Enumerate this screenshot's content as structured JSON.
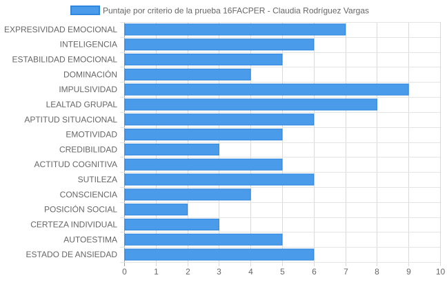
{
  "chart_data": {
    "type": "bar",
    "orientation": "horizontal",
    "categories": [
      "EXPRESIVIDAD EMOCIONAL",
      "INTELIGENCIA",
      "ESTABILIDAD EMOCIONAL",
      "DOMINACIÓN",
      "IMPULSIVIDAD",
      "LEALTAD GRUPAL",
      "APTITUD SITUACIONAL",
      "EMOTIVIDAD",
      "CREDIBILIDAD",
      "ACTITUD COGNITIVA",
      "SUTILEZA",
      "CONSCIENCIA",
      "POSICIÓN SOCIAL",
      "CERTEZA INDIVIDUAL",
      "AUTOESTIMA",
      "ESTADO DE ANSIEDAD"
    ],
    "series": [
      {
        "name": "Puntaje por criterio de la prueba 16FACPER - Claudia Rodríguez Vargas",
        "values": [
          7,
          6,
          5,
          4,
          9,
          8,
          6,
          5,
          3,
          5,
          6,
          4,
          2,
          3,
          5,
          6
        ],
        "color": "#4a9bea",
        "border_color": "#2e86de"
      }
    ],
    "x_ticks": [
      "0",
      "1",
      "2",
      "3",
      "4",
      "5",
      "6",
      "7",
      "8",
      "9",
      "10"
    ],
    "xlim": [
      0,
      10
    ],
    "grid": true,
    "legend_position": "top"
  }
}
